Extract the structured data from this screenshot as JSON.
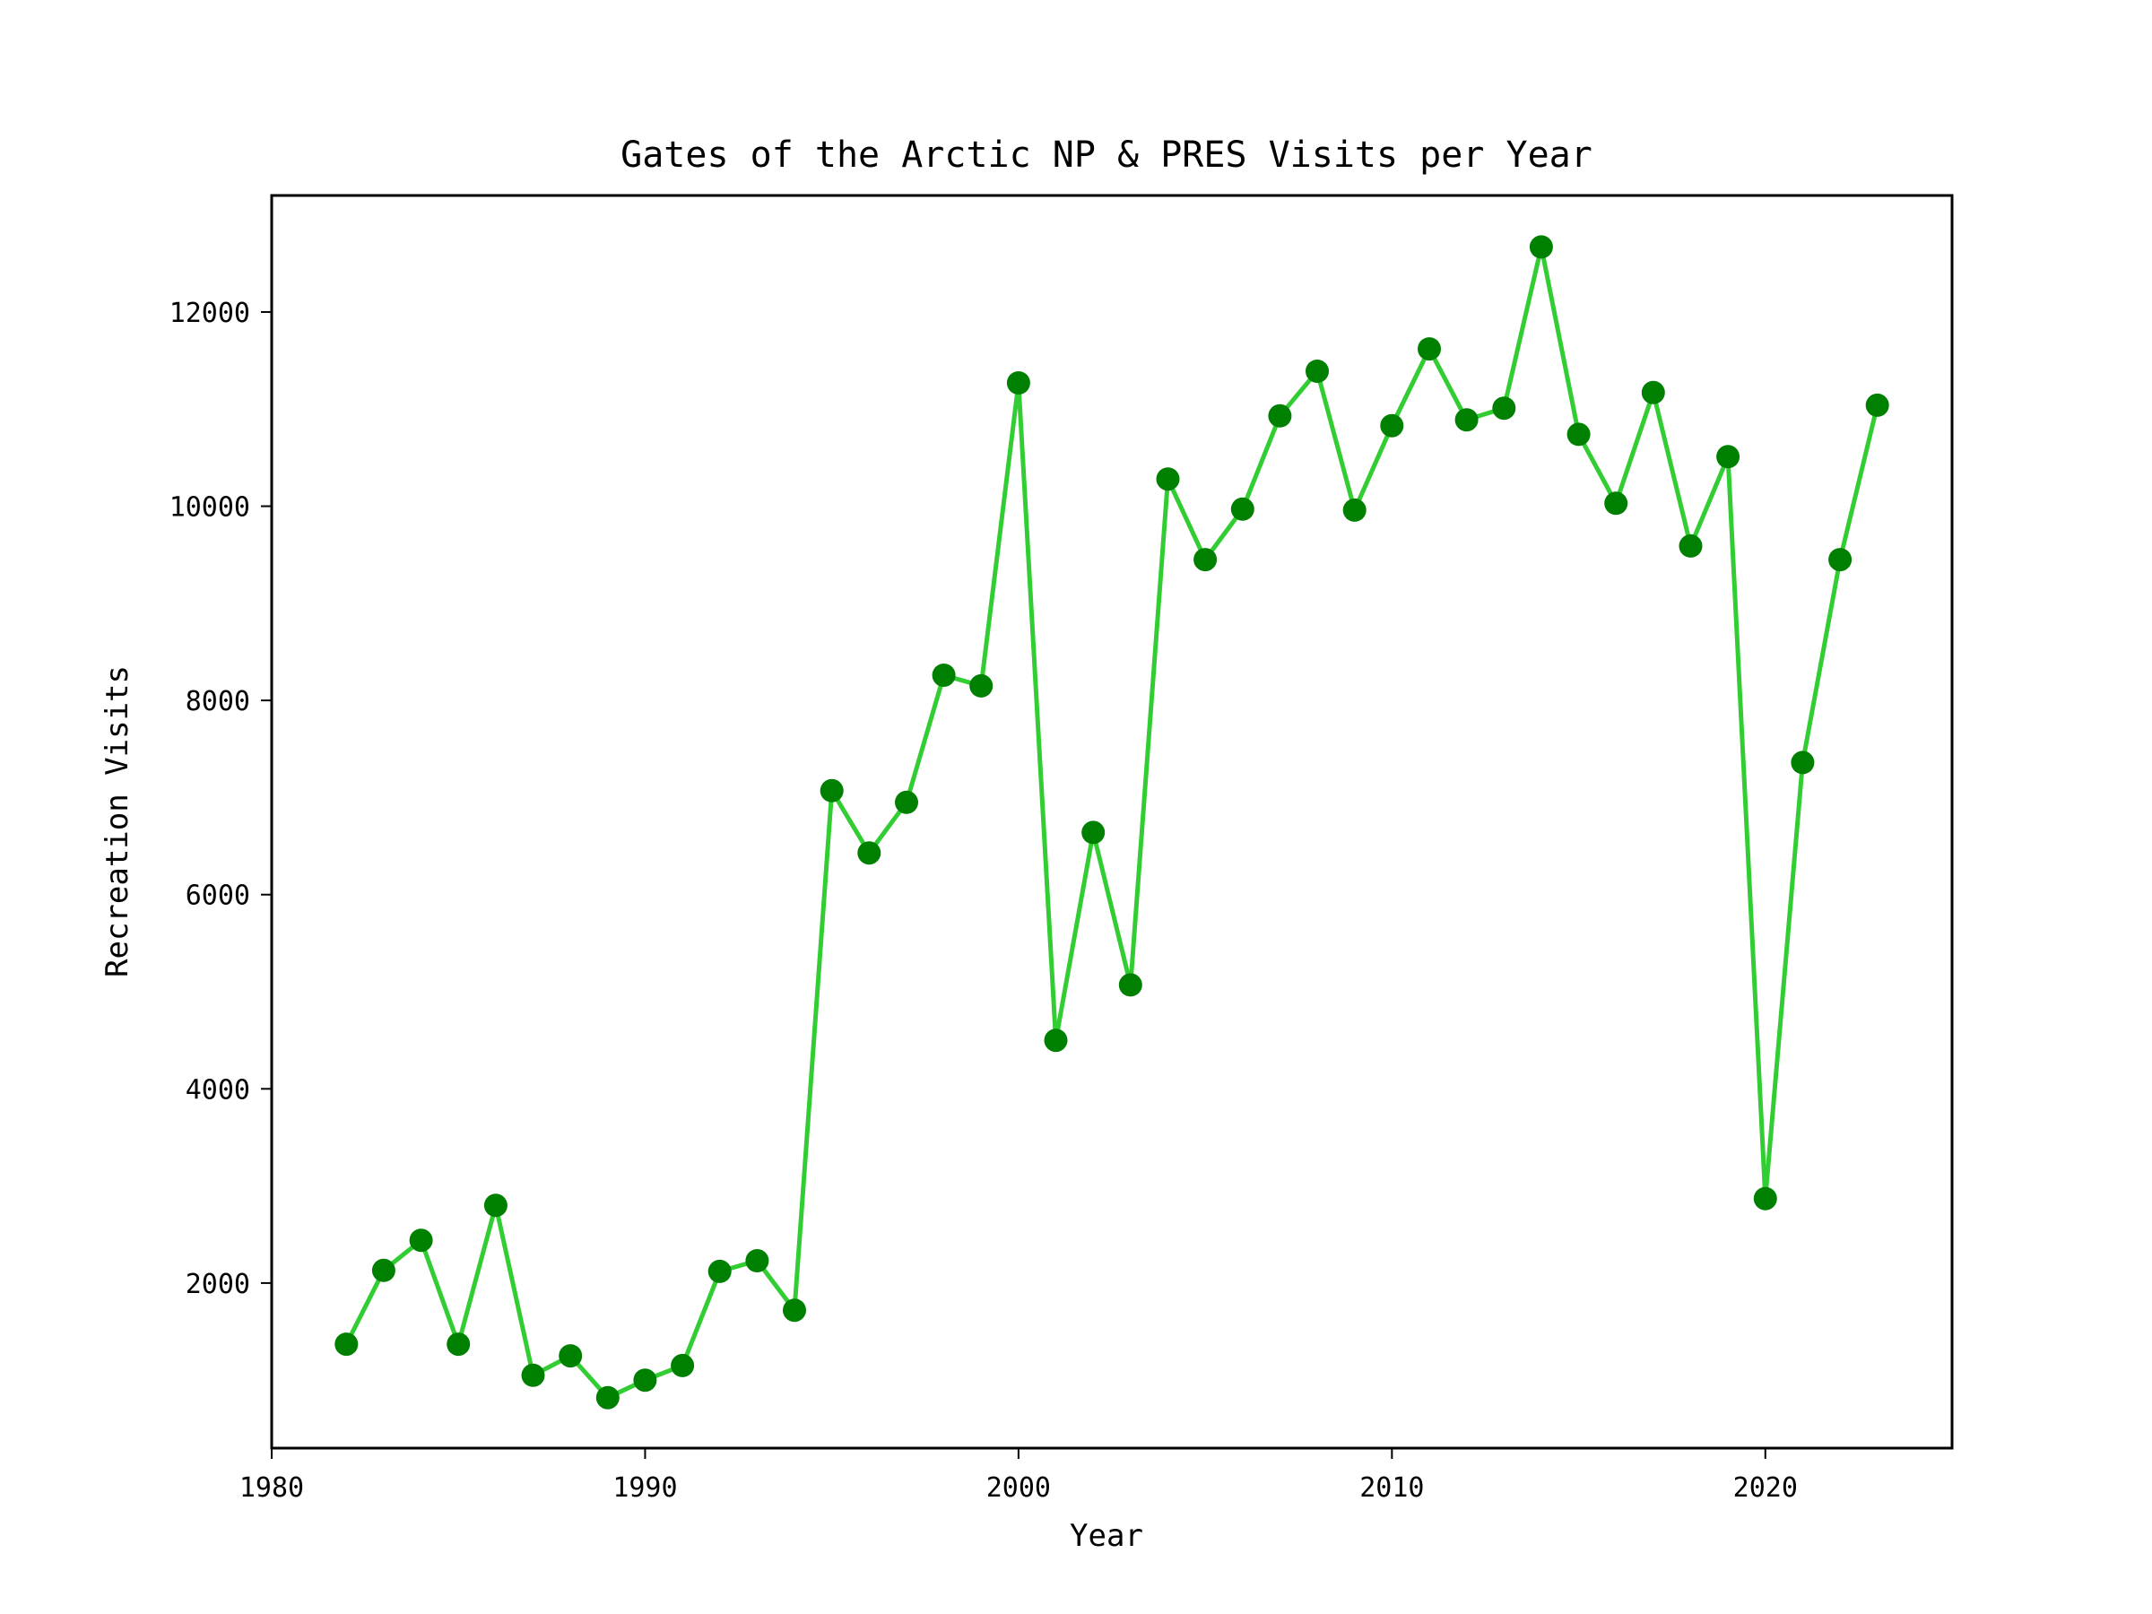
{
  "chart_data": {
    "type": "line",
    "title": "Gates of the Arctic NP & PRES Visits per Year",
    "xlabel": "Year",
    "ylabel": "Recreation Visits",
    "xlim": [
      1980,
      2025
    ],
    "ylim": [
      300,
      13200
    ],
    "xticks": [
      1980,
      1990,
      2000,
      2010,
      2020
    ],
    "yticks": [
      2000,
      4000,
      6000,
      8000,
      10000,
      12000
    ],
    "grid": false,
    "colors": {
      "line": "#32cd32",
      "marker": "#008000"
    },
    "series": [
      {
        "x": [
          1982,
          1983,
          1984,
          1985,
          1986,
          1987,
          1988,
          1989,
          1990,
          1991,
          1992,
          1993,
          1994,
          1995,
          1996,
          1997,
          1998,
          1999,
          2000,
          2001,
          2002,
          2003,
          2004,
          2005,
          2006,
          2007,
          2008,
          2009,
          2010,
          2011,
          2012,
          2013,
          2014,
          2015,
          2016,
          2017,
          2018,
          2019,
          2020,
          2021,
          2022,
          2023
        ],
        "values": [
          1370,
          2130,
          2440,
          1370,
          2800,
          1050,
          1250,
          820,
          1000,
          1150,
          2120,
          2230,
          1720,
          7070,
          6430,
          6950,
          8260,
          8150,
          11270,
          4500,
          6640,
          5070,
          10280,
          9450,
          9970,
          10930,
          11390,
          9960,
          10830,
          11620,
          10890,
          11010,
          12670,
          10740,
          10030,
          11170,
          9590,
          10510,
          2870,
          7360,
          9450,
          11040
        ]
      }
    ]
  }
}
